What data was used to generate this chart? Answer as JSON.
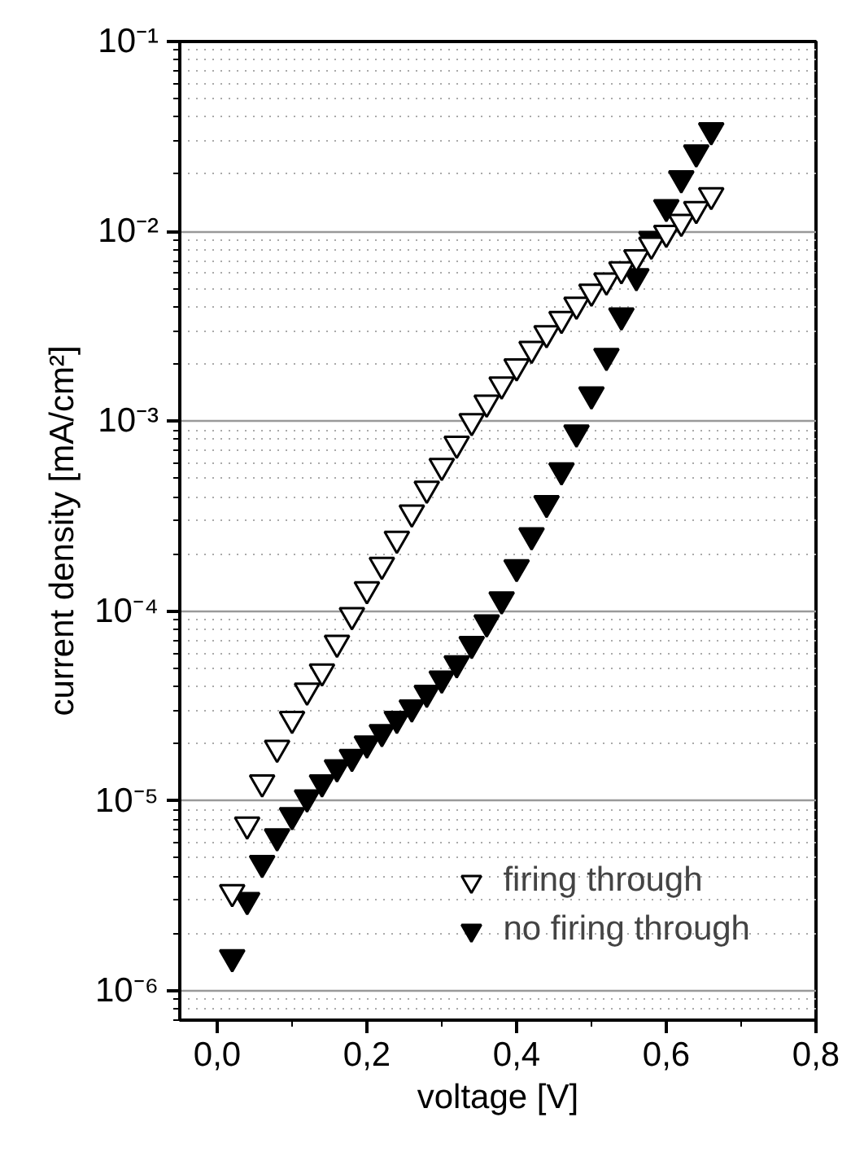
{
  "chart_data": {
    "type": "scatter",
    "xlabel": "voltage [V]",
    "ylabel": "current density [mA/cm²]",
    "log": "y",
    "grid": "y",
    "legend": "bottom right",
    "marker": "triangle",
    "xlim": [
      -0.05,
      0.8
    ],
    "xticks": [
      {
        "value": 0,
        "label": "0,0"
      },
      {
        "value": 0.2,
        "label": "0,2"
      },
      {
        "value": 0.4,
        "label": "0,4"
      },
      {
        "value": 0.6,
        "label": "0,6"
      },
      {
        "value": 0.8,
        "label": "0,8"
      }
    ],
    "ylim": [
      7e-07,
      0.1
    ],
    "yticks": [
      {
        "value": 1e-06,
        "label": "10⁻⁶"
      },
      {
        "value": 1e-05,
        "label": "10⁻⁵"
      },
      {
        "value": 0.0001,
        "label": "10⁻⁴"
      },
      {
        "value": 0.001,
        "label": "10⁻³"
      },
      {
        "value": 0.01,
        "label": "10⁻²"
      },
      {
        "value": 0.1,
        "label": "10⁻¹"
      }
    ],
    "series": [
      {
        "name": "firing through",
        "color": "#ffffff",
        "x": [
          0.02,
          0.04,
          0.06,
          0.08,
          0.1,
          0.12,
          0.14,
          0.16,
          0.18,
          0.2,
          0.22,
          0.24,
          0.26,
          0.28,
          0.3,
          0.32,
          0.34,
          0.36,
          0.38,
          0.4,
          0.42,
          0.44,
          0.46,
          0.48,
          0.5,
          0.52,
          0.54,
          0.56,
          0.58,
          0.6,
          0.62,
          0.64,
          0.66
        ],
        "values": [
          3.3e-06,
          7.5e-06,
          1.25e-05,
          1.9e-05,
          2.7e-05,
          3.8e-05,
          4.8e-05,
          6.8e-05,
          9.5e-05,
          0.00013,
          0.000175,
          0.00024,
          0.00033,
          0.00044,
          0.00058,
          0.00076,
          0.001,
          0.00125,
          0.00156,
          0.00194,
          0.0024,
          0.0029,
          0.00345,
          0.0041,
          0.0048,
          0.0055,
          0.0063,
          0.0073,
          0.0085,
          0.0098,
          0.0112,
          0.0131,
          0.0155
        ]
      },
      {
        "name": "no firing through",
        "color": "#000000",
        "x": [
          0.02,
          0.04,
          0.06,
          0.08,
          0.1,
          0.12,
          0.14,
          0.16,
          0.18,
          0.2,
          0.22,
          0.24,
          0.26,
          0.28,
          0.3,
          0.32,
          0.34,
          0.36,
          0.38,
          0.4,
          0.42,
          0.44,
          0.46,
          0.48,
          0.5,
          0.52,
          0.54,
          0.56,
          0.58,
          0.6,
          0.62,
          0.64,
          0.66
        ],
        "values": [
          1.5e-06,
          3e-06,
          4.7e-06,
          6.5e-06,
          8.4e-06,
          1.04e-05,
          1.25e-05,
          1.5e-05,
          1.7e-05,
          2e-05,
          2.3e-05,
          2.7e-05,
          3.1e-05,
          3.7e-05,
          4.4e-05,
          5.3e-05,
          6.7e-05,
          8.7e-05,
          0.000115,
          0.00017,
          0.00025,
          0.00037,
          0.00055,
          0.00087,
          0.00138,
          0.0022,
          0.0036,
          0.0058,
          0.0091,
          0.0134,
          0.019,
          0.026,
          0.034
        ]
      }
    ]
  }
}
